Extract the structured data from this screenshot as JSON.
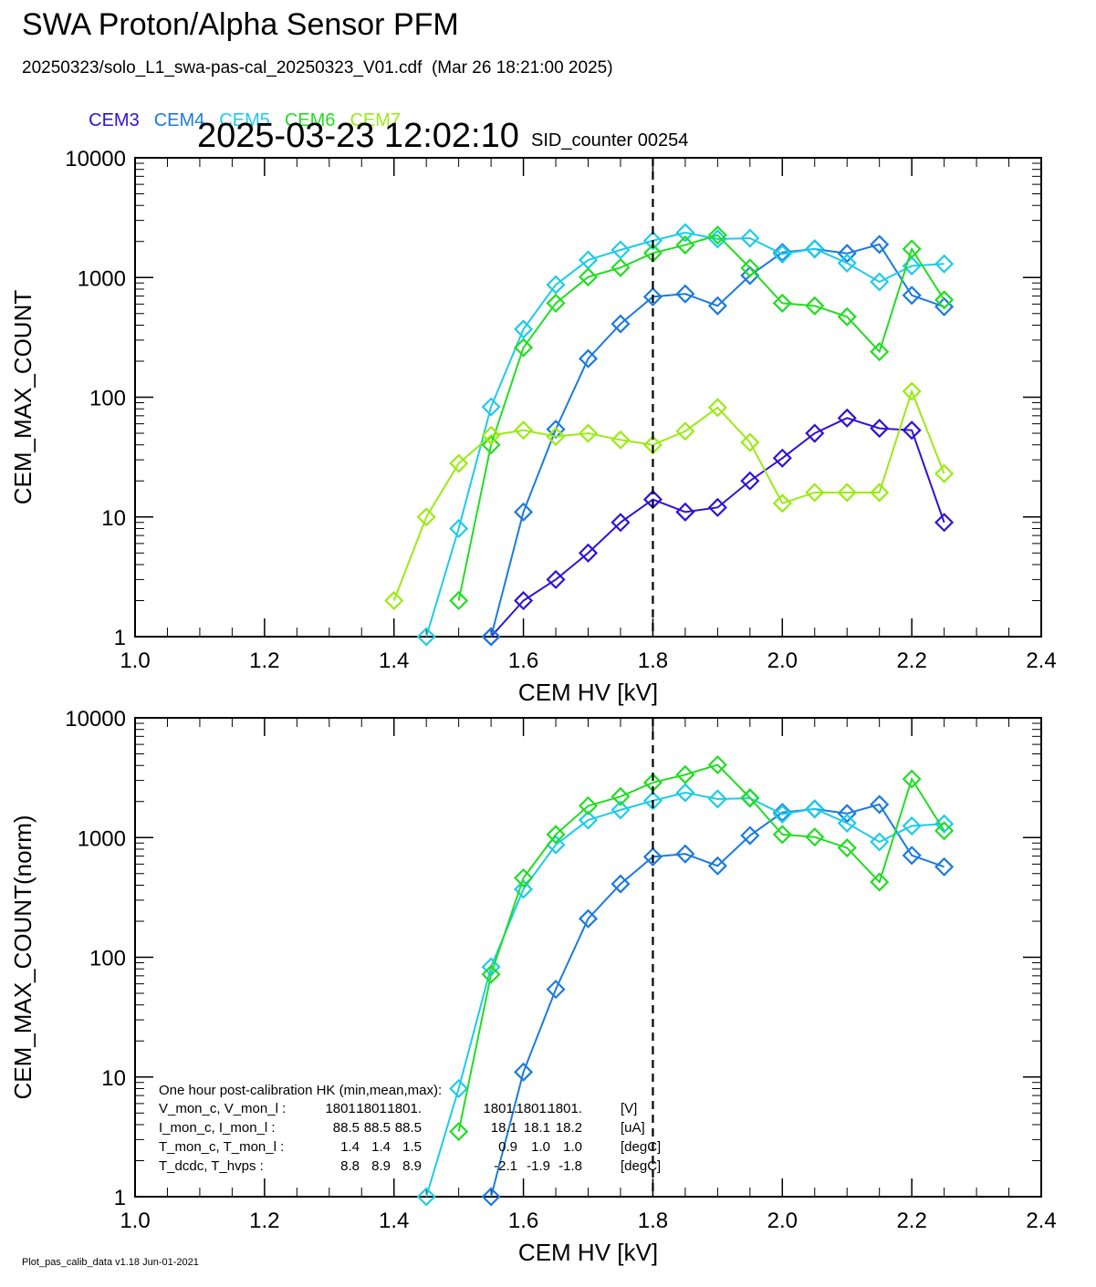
{
  "header": {
    "title": "SWA Proton/Alpha Sensor PFM",
    "subtitle": "20250323/solo_L1_swa-pas-cal_20250323_V01.cdf  (Mar 26 18:21:00 2025)",
    "timestamp": "2025-03-23 12:02:10",
    "sid_counter": "SID_counter 00254"
  },
  "legend": [
    {
      "name": "CEM3",
      "color": "#2f12d6"
    },
    {
      "name": "CEM4",
      "color": "#1b7ae0"
    },
    {
      "name": "CEM5",
      "color": "#1ecbe8"
    },
    {
      "name": "CEM6",
      "color": "#22dd22"
    },
    {
      "name": "CEM7",
      "color": "#9aeb14"
    }
  ],
  "chart_data": [
    {
      "type": "line",
      "xlabel": "CEM HV [kV]",
      "ylabel": "CEM_MAX_COUNT",
      "xlim": [
        1.0,
        2.4
      ],
      "ylim": [
        1,
        10000
      ],
      "yscale": "log",
      "xticks": [
        "1.0",
        "1.2",
        "1.4",
        "1.6",
        "1.8",
        "2.0",
        "2.2",
        "2.4"
      ],
      "yticks": [
        "1",
        "10",
        "100",
        "1000",
        "10000"
      ],
      "vline_x": 1.8,
      "marker": "diamond",
      "series": [
        {
          "name": "CEM3",
          "color": "#2f12d6",
          "x": [
            1.55,
            1.6,
            1.65,
            1.7,
            1.75,
            1.8,
            1.85,
            1.9,
            1.95,
            2.0,
            2.05,
            2.1,
            2.15,
            2.2,
            2.25
          ],
          "y": [
            1,
            2,
            3,
            5,
            9,
            14,
            11,
            12,
            20,
            31,
            50,
            67,
            55,
            53,
            9
          ]
        },
        {
          "name": "CEM4",
          "color": "#1b7ae0",
          "x": [
            1.55,
            1.6,
            1.65,
            1.7,
            1.75,
            1.8,
            1.85,
            1.9,
            1.95,
            2.0,
            2.05,
            2.1,
            2.15,
            2.2,
            2.25
          ],
          "y": [
            1,
            11,
            54,
            210,
            410,
            690,
            730,
            580,
            1040,
            1620,
            1730,
            1590,
            1890,
            710,
            570
          ]
        },
        {
          "name": "CEM5",
          "color": "#1ecbe8",
          "x": [
            1.45,
            1.5,
            1.55,
            1.6,
            1.65,
            1.7,
            1.75,
            1.8,
            1.85,
            1.9,
            1.95,
            2.0,
            2.05,
            2.1,
            2.15,
            2.2,
            2.25
          ],
          "y": [
            1,
            8,
            83,
            370,
            870,
            1400,
            1700,
            2030,
            2370,
            2100,
            2130,
            1570,
            1740,
            1320,
            920,
            1250,
            1300
          ]
        },
        {
          "name": "CEM6",
          "color": "#22dd22",
          "x": [
            1.5,
            1.55,
            1.6,
            1.65,
            1.7,
            1.75,
            1.8,
            1.85,
            1.9,
            1.95,
            2.0,
            2.05,
            2.1,
            2.15,
            2.2,
            2.25
          ],
          "y": [
            2,
            40,
            260,
            610,
            1010,
            1210,
            1600,
            1870,
            2260,
            1200,
            610,
            580,
            470,
            240,
            1730,
            650
          ]
        },
        {
          "name": "CEM7",
          "color": "#9aeb14",
          "x": [
            1.4,
            1.45,
            1.5,
            1.55,
            1.6,
            1.65,
            1.7,
            1.75,
            1.8,
            1.85,
            1.9,
            1.95,
            2.0,
            2.05,
            2.1,
            2.15,
            2.2,
            2.25
          ],
          "y": [
            2,
            10,
            28,
            48,
            53,
            47,
            50,
            44,
            40,
            52,
            82,
            42,
            13,
            16,
            16,
            16,
            112,
            23
          ]
        }
      ]
    },
    {
      "type": "line",
      "xlabel": "CEM HV [kV]",
      "ylabel": "CEM_MAX_COUNT(norm)",
      "xlim": [
        1.0,
        2.4
      ],
      "ylim": [
        1,
        10000
      ],
      "yscale": "log",
      "xticks": [
        "1.0",
        "1.2",
        "1.4",
        "1.6",
        "1.8",
        "2.0",
        "2.2",
        "2.4"
      ],
      "yticks": [
        "1",
        "10",
        "100",
        "1000",
        "10000"
      ],
      "vline_x": 1.8,
      "marker": "diamond",
      "series": [
        {
          "name": "CEM4",
          "color": "#1b7ae0",
          "x": [
            1.55,
            1.6,
            1.65,
            1.7,
            1.75,
            1.8,
            1.85,
            1.9,
            1.95,
            2.0,
            2.05,
            2.1,
            2.15,
            2.2,
            2.25
          ],
          "y": [
            1,
            11,
            54,
            210,
            410,
            690,
            730,
            580,
            1040,
            1620,
            1730,
            1590,
            1890,
            710,
            570
          ]
        },
        {
          "name": "CEM5",
          "color": "#1ecbe8",
          "x": [
            1.45,
            1.5,
            1.55,
            1.6,
            1.65,
            1.7,
            1.75,
            1.8,
            1.85,
            1.9,
            1.95,
            2.0,
            2.05,
            2.1,
            2.15,
            2.2,
            2.25
          ],
          "y": [
            1,
            8,
            83,
            370,
            870,
            1400,
            1700,
            2030,
            2370,
            2100,
            2130,
            1570,
            1740,
            1320,
            920,
            1250,
            1300
          ]
        },
        {
          "name": "CEM6",
          "color": "#22dd22",
          "x": [
            1.5,
            1.55,
            1.6,
            1.65,
            1.7,
            1.75,
            1.8,
            1.85,
            1.9,
            1.95,
            2.0,
            2.05,
            2.1,
            2.15,
            2.2,
            2.25
          ],
          "y": [
            3.5,
            72,
            460,
            1060,
            1840,
            2200,
            2880,
            3350,
            4050,
            2150,
            1060,
            1010,
            820,
            425,
            3080,
            1140
          ]
        }
      ],
      "hk_table": {
        "header": "One hour post-calibration HK (min,mean,max):",
        "rows": [
          {
            "label": "V_mon_c, V_mon_l :",
            "values": [
              "1801.",
              "1801.",
              "1801.",
              "1801.",
              "1801.",
              "1801."
            ],
            "unit": "[V]"
          },
          {
            "label": "I_mon_c,  I_mon_l :",
            "values": [
              "88.5",
              "88.5",
              "88.5",
              "18.1",
              "18.1",
              "18.2"
            ],
            "unit": "[uA]"
          },
          {
            "label": "T_mon_c, T_mon_l :",
            "values": [
              "1.4",
              "1.4",
              "1.5",
              "0.9",
              "1.0",
              "1.0"
            ],
            "unit": "[degC]"
          },
          {
            "label": "T_dcdc,    T_hvps :",
            "values": [
              "8.8",
              "8.9",
              "8.9",
              "-2.1",
              "-1.9",
              "-1.8"
            ],
            "unit": "[degC]"
          }
        ]
      }
    }
  ],
  "footer": "Plot_pas_calib_data v1.18 Jun-01-2021"
}
